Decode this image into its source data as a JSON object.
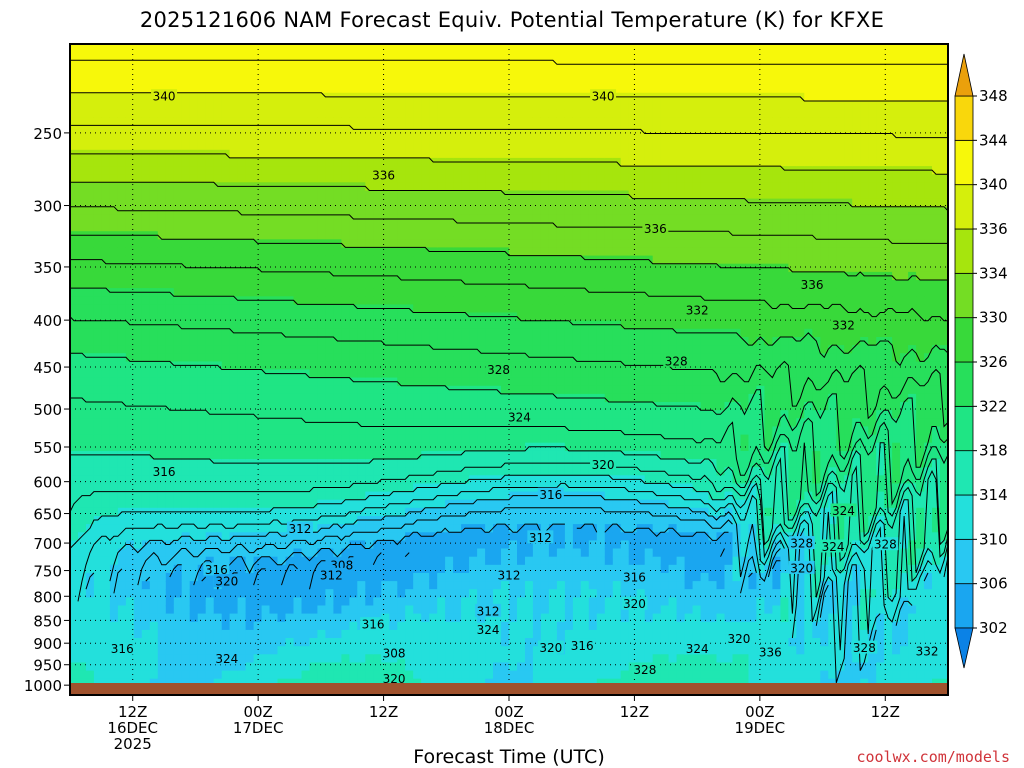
{
  "chart_data": {
    "type": "heatmap",
    "title": "2025121606 NAM Forecast Equiv. Potential Temperature (K) for KFXE",
    "xlabel": "Forecast Time (UTC)",
    "ylabel": "",
    "units": "K",
    "y_ticks": [
      250,
      300,
      350,
      400,
      450,
      500,
      550,
      600,
      650,
      700,
      750,
      800,
      850,
      900,
      950,
      1000
    ],
    "y_scale": "log-pressure",
    "ylim": [
      200,
      1025
    ],
    "x_ticks": [
      {
        "hour": 6,
        "line1": "12Z",
        "line2": "16DEC",
        "line3": "2025"
      },
      {
        "hour": 18,
        "line1": "00Z",
        "line2": "17DEC",
        "line3": ""
      },
      {
        "hour": 30,
        "line1": "12Z",
        "line2": "",
        "line3": ""
      },
      {
        "hour": 42,
        "line1": "00Z",
        "line2": "18DEC",
        "line3": ""
      },
      {
        "hour": 54,
        "line1": "12Z",
        "line2": "",
        "line3": ""
      },
      {
        "hour": 66,
        "line1": "00Z",
        "line2": "19DEC",
        "line3": ""
      },
      {
        "hour": 78,
        "line1": "12Z",
        "line2": "",
        "line3": ""
      }
    ],
    "xlim": [
      0,
      84
    ],
    "colorbar": {
      "levels": [
        302,
        306,
        310,
        314,
        318,
        322,
        326,
        330,
        334,
        336,
        340,
        344,
        348
      ],
      "colors": [
        "#1aa6f0",
        "#29c8f2",
        "#23e0dc",
        "#1fe7b2",
        "#1fe584",
        "#27df5b",
        "#38d93a",
        "#74dd24",
        "#a6e50d",
        "#d5ef0c",
        "#f7f80a",
        "#f9d70c",
        "#f2a80f"
      ],
      "under_color": "#0b82e6",
      "over_color": "#eaa00c"
    },
    "contour_labels": [
      {
        "value": "340",
        "hour": 9,
        "p": 228
      },
      {
        "value": "340",
        "hour": 51,
        "p": 228
      },
      {
        "value": "336",
        "hour": 30,
        "p": 278
      },
      {
        "value": "336",
        "hour": 56,
        "p": 318
      },
      {
        "value": "336",
        "hour": 71,
        "p": 366
      },
      {
        "value": "332",
        "hour": 60,
        "p": 390
      },
      {
        "value": "332",
        "hour": 74,
        "p": 405
      },
      {
        "value": "328",
        "hour": 41,
        "p": 453
      },
      {
        "value": "328",
        "hour": 58,
        "p": 443
      },
      {
        "value": "324",
        "hour": 43,
        "p": 510
      },
      {
        "value": "320",
        "hour": 51,
        "p": 575
      },
      {
        "value": "316",
        "hour": 9,
        "p": 585
      },
      {
        "value": "316",
        "hour": 46,
        "p": 620
      },
      {
        "value": "312",
        "hour": 22,
        "p": 675
      },
      {
        "value": "312",
        "hour": 45,
        "p": 690
      },
      {
        "value": "308",
        "hour": 26,
        "p": 740
      },
      {
        "value": "316",
        "hour": 14,
        "p": 748
      },
      {
        "value": "320",
        "hour": 15,
        "p": 770
      },
      {
        "value": "312",
        "hour": 25,
        "p": 758
      },
      {
        "value": "312",
        "hour": 42,
        "p": 758
      },
      {
        "value": "316",
        "hour": 54,
        "p": 762
      },
      {
        "value": "320",
        "hour": 54,
        "p": 815
      },
      {
        "value": "312",
        "hour": 40,
        "p": 830
      },
      {
        "value": "324",
        "hour": 40,
        "p": 870
      },
      {
        "value": "316",
        "hour": 29,
        "p": 858
      },
      {
        "value": "316",
        "hour": 5,
        "p": 912
      },
      {
        "value": "324",
        "hour": 15,
        "p": 935
      },
      {
        "value": "308",
        "hour": 31,
        "p": 922
      },
      {
        "value": "320",
        "hour": 46,
        "p": 910
      },
      {
        "value": "316",
        "hour": 49,
        "p": 905
      },
      {
        "value": "324",
        "hour": 60,
        "p": 912
      },
      {
        "value": "320",
        "hour": 64,
        "p": 890
      },
      {
        "value": "336",
        "hour": 67,
        "p": 920
      },
      {
        "value": "328",
        "hour": 76,
        "p": 910
      },
      {
        "value": "332",
        "hour": 82,
        "p": 918
      },
      {
        "value": "328",
        "hour": 55,
        "p": 962
      },
      {
        "value": "320",
        "hour": 31,
        "p": 983
      },
      {
        "value": "324",
        "hour": 74,
        "p": 645
      },
      {
        "value": "328",
        "hour": 70,
        "p": 700
      },
      {
        "value": "324",
        "hour": 73,
        "p": 706
      },
      {
        "value": "328",
        "hour": 78,
        "p": 702
      },
      {
        "value": "320",
        "hour": 70,
        "p": 745
      }
    ]
  },
  "source_credit": "coolwx.com/models"
}
